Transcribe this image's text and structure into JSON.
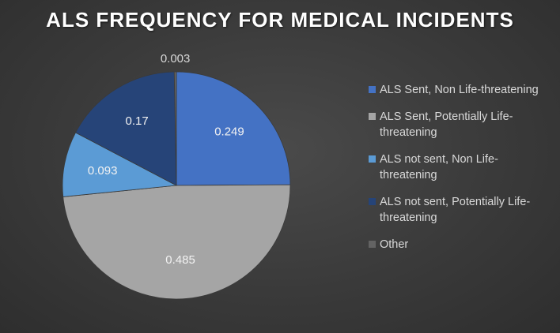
{
  "chart_data": {
    "type": "pie",
    "title": "ALS FREQUENCY FOR MEDICAL INCIDENTS",
    "categories": [
      "ALS Sent, Non Life-threatening",
      "ALS Sent, Potentially Life-threatening",
      "ALS not sent, Non Life-threatening",
      "ALS not sent, Potentially Life-threatening",
      "Other"
    ],
    "values": [
      0.249,
      0.485,
      0.093,
      0.17,
      0.003
    ],
    "data_labels": [
      "0.249",
      "0.485",
      "0.093",
      "0.17",
      "0.003"
    ],
    "colors": [
      "#4472c4",
      "#a5a5a5",
      "#5b9bd5",
      "#264478",
      "#636363"
    ],
    "legend_position": "right"
  }
}
